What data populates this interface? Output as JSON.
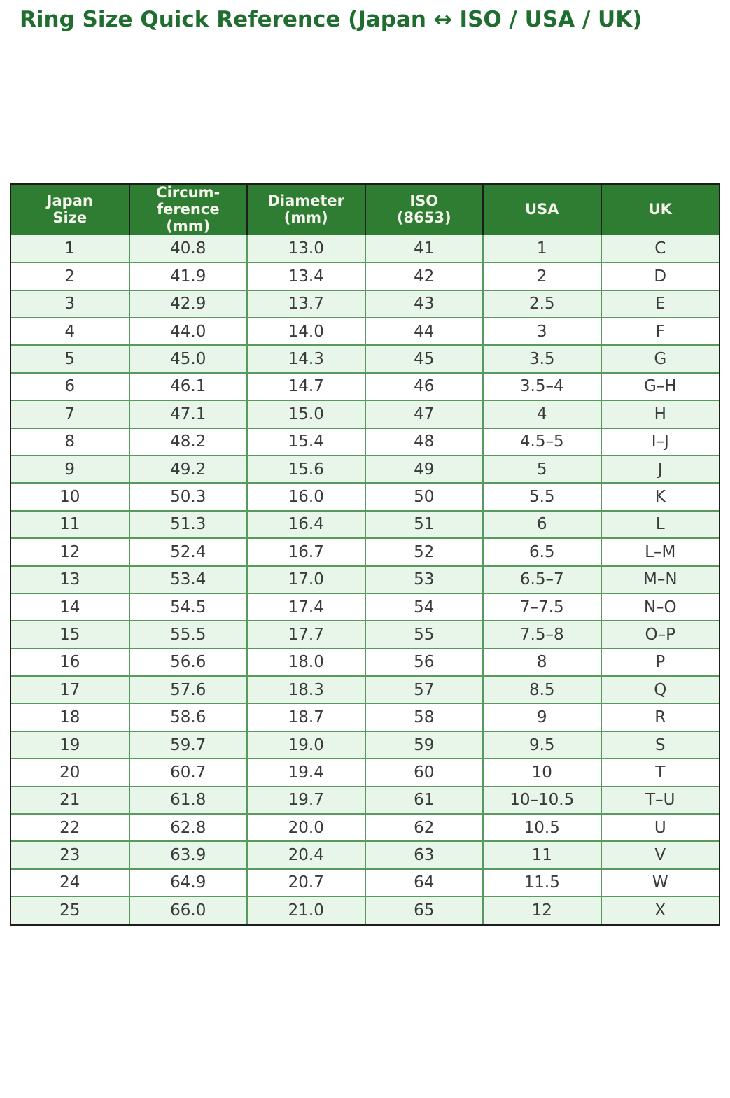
{
  "page": {
    "title": "Ring Size Quick Reference (Japan ↔ ISO / USA / UK)"
  },
  "colors": {
    "title_green": "#1f6e2f",
    "header_bg": "#2e7d32",
    "header_text": "#f5f4ec",
    "row_alt_bg": "#e8f5e9",
    "row_bg": "#ffffff",
    "cell_border": "#58995e",
    "frame_border": "#1c1c1c",
    "cell_text": "#3a3a3a"
  },
  "table": {
    "columns": [
      {
        "id": "japan-size",
        "label": "Japan\nSize"
      },
      {
        "id": "circumference",
        "label": "Circum-\nference\n(mm)"
      },
      {
        "id": "diameter",
        "label": "Diameter\n(mm)"
      },
      {
        "id": "iso",
        "label": "ISO\n(8653)"
      },
      {
        "id": "usa",
        "label": "USA"
      },
      {
        "id": "uk",
        "label": "UK"
      }
    ],
    "rows": [
      [
        "1",
        "40.8",
        "13.0",
        "41",
        "1",
        "C"
      ],
      [
        "2",
        "41.9",
        "13.4",
        "42",
        "2",
        "D"
      ],
      [
        "3",
        "42.9",
        "13.7",
        "43",
        "2.5",
        "E"
      ],
      [
        "4",
        "44.0",
        "14.0",
        "44",
        "3",
        "F"
      ],
      [
        "5",
        "45.0",
        "14.3",
        "45",
        "3.5",
        "G"
      ],
      [
        "6",
        "46.1",
        "14.7",
        "46",
        "3.5–4",
        "G–H"
      ],
      [
        "7",
        "47.1",
        "15.0",
        "47",
        "4",
        "H"
      ],
      [
        "8",
        "48.2",
        "15.4",
        "48",
        "4.5–5",
        "I–J"
      ],
      [
        "9",
        "49.2",
        "15.6",
        "49",
        "5",
        "J"
      ],
      [
        "10",
        "50.3",
        "16.0",
        "50",
        "5.5",
        "K"
      ],
      [
        "11",
        "51.3",
        "16.4",
        "51",
        "6",
        "L"
      ],
      [
        "12",
        "52.4",
        "16.7",
        "52",
        "6.5",
        "L–M"
      ],
      [
        "13",
        "53.4",
        "17.0",
        "53",
        "6.5–7",
        "M–N"
      ],
      [
        "14",
        "54.5",
        "17.4",
        "54",
        "7–7.5",
        "N–O"
      ],
      [
        "15",
        "55.5",
        "17.7",
        "55",
        "7.5–8",
        "O–P"
      ],
      [
        "16",
        "56.6",
        "18.0",
        "56",
        "8",
        "P"
      ],
      [
        "17",
        "57.6",
        "18.3",
        "57",
        "8.5",
        "Q"
      ],
      [
        "18",
        "58.6",
        "18.7",
        "58",
        "9",
        "R"
      ],
      [
        "19",
        "59.7",
        "19.0",
        "59",
        "9.5",
        "S"
      ],
      [
        "20",
        "60.7",
        "19.4",
        "60",
        "10",
        "T"
      ],
      [
        "21",
        "61.8",
        "19.7",
        "61",
        "10–10.5",
        "T–U"
      ],
      [
        "22",
        "62.8",
        "20.0",
        "62",
        "10.5",
        "U"
      ],
      [
        "23",
        "63.9",
        "20.4",
        "63",
        "11",
        "V"
      ],
      [
        "24",
        "64.9",
        "20.7",
        "64",
        "11.5",
        "W"
      ],
      [
        "25",
        "66.0",
        "21.0",
        "65",
        "12",
        "X"
      ]
    ]
  },
  "chart_data": {
    "type": "table",
    "title": "Ring Size Quick Reference (Japan ↔ ISO / USA / UK)",
    "columns": [
      "Japan Size",
      "Circumference (mm)",
      "Diameter (mm)",
      "ISO (8653)",
      "USA",
      "UK"
    ],
    "rows": [
      [
        1,
        40.8,
        13.0,
        41,
        "1",
        "C"
      ],
      [
        2,
        41.9,
        13.4,
        42,
        "2",
        "D"
      ],
      [
        3,
        42.9,
        13.7,
        43,
        "2.5",
        "E"
      ],
      [
        4,
        44.0,
        14.0,
        44,
        "3",
        "F"
      ],
      [
        5,
        45.0,
        14.3,
        45,
        "3.5",
        "G"
      ],
      [
        6,
        46.1,
        14.7,
        46,
        "3.5–4",
        "G–H"
      ],
      [
        7,
        47.1,
        15.0,
        47,
        "4",
        "H"
      ],
      [
        8,
        48.2,
        15.4,
        48,
        "4.5–5",
        "I–J"
      ],
      [
        9,
        49.2,
        15.6,
        49,
        "5",
        "J"
      ],
      [
        10,
        50.3,
        16.0,
        50,
        "5.5",
        "K"
      ],
      [
        11,
        51.3,
        16.4,
        51,
        "6",
        "L"
      ],
      [
        12,
        52.4,
        16.7,
        52,
        "6.5",
        "L–M"
      ],
      [
        13,
        53.4,
        17.0,
        53,
        "6.5–7",
        "M–N"
      ],
      [
        14,
        54.5,
        17.4,
        54,
        "7–7.5",
        "N–O"
      ],
      [
        15,
        55.5,
        17.7,
        55,
        "7.5–8",
        "O–P"
      ],
      [
        16,
        56.6,
        18.0,
        56,
        "8",
        "P"
      ],
      [
        17,
        57.6,
        18.3,
        57,
        "8.5",
        "Q"
      ],
      [
        18,
        58.6,
        18.7,
        58,
        "9",
        "R"
      ],
      [
        19,
        59.7,
        19.0,
        59,
        "9.5",
        "S"
      ],
      [
        20,
        60.7,
        19.4,
        60,
        "10",
        "T"
      ],
      [
        21,
        61.8,
        19.7,
        61,
        "10–10.5",
        "T–U"
      ],
      [
        22,
        62.8,
        20.0,
        62,
        "10.5",
        "U"
      ],
      [
        23,
        63.9,
        20.4,
        63,
        "11",
        "V"
      ],
      [
        24,
        64.9,
        20.7,
        64,
        "11.5",
        "W"
      ],
      [
        25,
        66.0,
        21.0,
        65,
        "12",
        "X"
      ]
    ],
    "layout_hints": {
      "striped_rows": true,
      "stripe_start": "odd-rows-light-green",
      "header_style": "dark-green-bg-white-bold-text",
      "grid": true
    }
  }
}
